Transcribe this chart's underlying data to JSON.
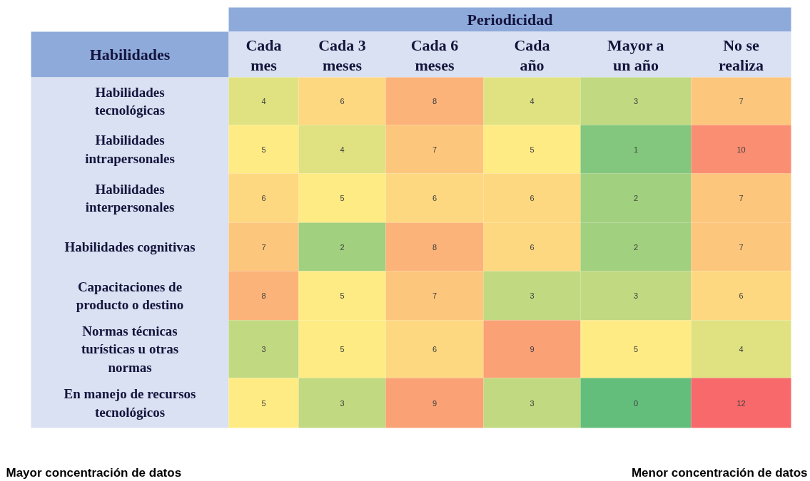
{
  "chart_data": {
    "type": "heatmap",
    "xlabel": "Periodicidad",
    "ylabel": "Habilidades",
    "categories": [
      "Cada mes",
      "Cada 3 meses",
      "Cada 6 meses",
      "Cada año",
      "Mayor a un año",
      "No se realiza"
    ],
    "y_categories": [
      "Habilidades tecnológicas",
      "Habilidades intrapersonales",
      "Habilidades interpersonales",
      "Habilidades cognitivas",
      "Capacitaciones de producto o destino",
      "Normas técnicas turísticas u otras normas",
      "En manejo de recursos tecnológicos"
    ],
    "cells": [
      [
        4,
        6,
        8,
        4,
        3,
        7
      ],
      [
        5,
        4,
        7,
        5,
        1,
        10
      ],
      [
        6,
        5,
        6,
        6,
        2,
        7
      ],
      [
        7,
        2,
        8,
        6,
        2,
        7
      ],
      [
        8,
        5,
        7,
        3,
        3,
        6
      ],
      [
        3,
        5,
        6,
        9,
        5,
        4
      ],
      [
        5,
        3,
        9,
        3,
        0,
        12
      ]
    ],
    "data_labels": true,
    "annotations": [
      "Mayor concentración de datos",
      "Menor concentración de datos"
    ]
  }
}
